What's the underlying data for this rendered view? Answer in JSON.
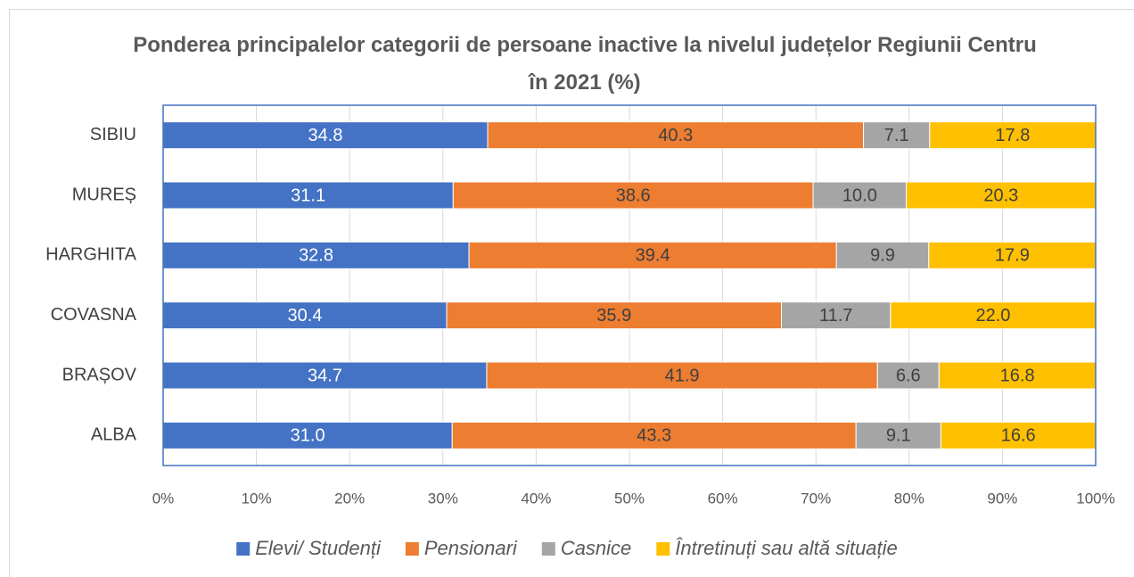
{
  "chart_data": {
    "type": "stacked-barh",
    "title": "Ponderea principalelor categorii de persoane inactive la nivelul județelor Regiunii Centru în 2021 (%)",
    "categories": [
      "SIBIU",
      "MUREȘ",
      "HARGHITA",
      "COVASNA",
      "BRAȘOV",
      "ALBA"
    ],
    "series": [
      {
        "name": "Elevi/ Studenți",
        "color": "#4472c4",
        "values": [
          34.8,
          31.1,
          32.8,
          30.4,
          34.7,
          31.0
        ],
        "value_labels": [
          "34.8",
          "31.1",
          "32.8",
          "30.4",
          "34.7",
          "31.0"
        ]
      },
      {
        "name": "Pensionari",
        "color": "#ed7d31",
        "values": [
          40.3,
          38.6,
          39.4,
          35.9,
          41.9,
          43.3
        ],
        "value_labels": [
          "40.3",
          "38.6",
          "39.4",
          "35.9",
          "41.9",
          "43.3"
        ]
      },
      {
        "name": "Casnice",
        "color": "#a5a5a5",
        "values": [
          7.1,
          10.0,
          9.9,
          11.7,
          6.6,
          9.1
        ],
        "value_labels": [
          "7.1",
          "10.0",
          "9.9",
          "11.7",
          "6.6",
          "9.1"
        ]
      },
      {
        "name": "Întretinuți sau altă situație",
        "color": "#ffc000",
        "values": [
          17.8,
          20.3,
          17.9,
          22.0,
          16.8,
          16.6
        ],
        "value_labels": [
          "17.8",
          "20.3",
          "17.9",
          "22.0",
          "16.8",
          "16.6"
        ]
      }
    ],
    "xlim": [
      0,
      100
    ],
    "xticks": [
      {
        "value": 0,
        "label": "0%"
      },
      {
        "value": 10,
        "label": "10%"
      },
      {
        "value": 20,
        "label": "20%"
      },
      {
        "value": 30,
        "label": "30%"
      },
      {
        "value": 40,
        "label": "40%"
      },
      {
        "value": 50,
        "label": "50%"
      },
      {
        "value": 60,
        "label": "60%"
      },
      {
        "value": 70,
        "label": "70%"
      },
      {
        "value": 80,
        "label": "80%"
      },
      {
        "value": 90,
        "label": "90%"
      },
      {
        "value": 100,
        "label": "100%"
      }
    ],
    "grid": true,
    "legend": "bottom"
  }
}
